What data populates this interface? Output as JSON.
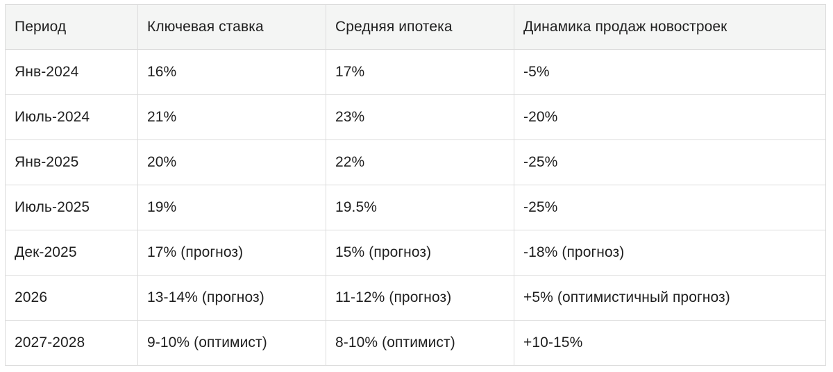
{
  "table": {
    "headers": [
      "Период",
      "Ключевая ставка",
      "Средняя ипотека",
      "Динамика продаж новостроек"
    ],
    "rows": [
      [
        "Янв-2024",
        "16%",
        "17%",
        "-5%"
      ],
      [
        "Июль-2024",
        "21%",
        "23%",
        "-20%"
      ],
      [
        "Янв-2025",
        "20%",
        "22%",
        "-25%"
      ],
      [
        "Июль-2025",
        "19%",
        "19.5%",
        "-25%"
      ],
      [
        "Дек-2025",
        "17% (прогноз)",
        "15% (прогноз)",
        "-18% (прогноз)"
      ],
      [
        "2026",
        "13-14% (прогноз)",
        "11-12% (прогноз)",
        "+5% (оптимистичный прогноз)"
      ],
      [
        "2027-2028",
        "9-10% (оптимист)",
        "8-10% (оптимист)",
        "+10-15%"
      ]
    ]
  },
  "colors": {
    "header_background": "#f4f5f4",
    "border": "#dcdcdc",
    "text": "#1f1f1f"
  }
}
